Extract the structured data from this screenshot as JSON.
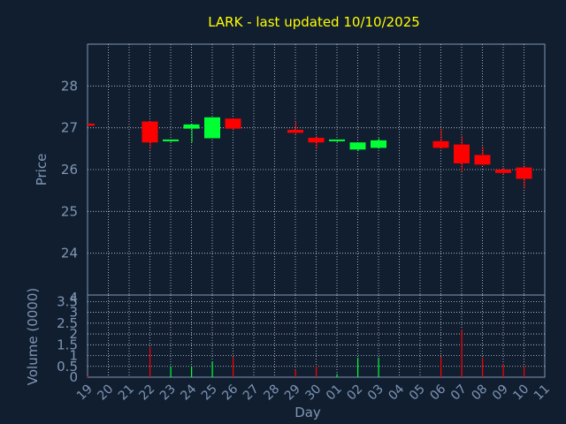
{
  "chart_data": [
    {
      "type": "candlestick",
      "title": "LARK - last updated 10/10/2025",
      "ylabel": "Price",
      "ylim": [
        23,
        29
      ],
      "yticks": [
        24,
        25,
        26,
        27,
        28
      ],
      "grid": true,
      "colors": {
        "up": "#00ff33",
        "down": "#ff0000"
      },
      "candles": [
        {
          "day": "19",
          "open": 27.1,
          "high": 27.1,
          "low": 27.05,
          "close": 27.05
        },
        {
          "day": "22",
          "open": 27.15,
          "high": 27.15,
          "low": 26.5,
          "close": 26.65
        },
        {
          "day": "23",
          "open": 26.7,
          "high": 26.72,
          "low": 26.66,
          "close": 26.72
        },
        {
          "day": "24",
          "open": 26.98,
          "high": 27.1,
          "low": 26.65,
          "close": 27.08
        },
        {
          "day": "25",
          "open": 26.75,
          "high": 27.25,
          "low": 26.75,
          "close": 27.25
        },
        {
          "day": "26",
          "open": 27.22,
          "high": 27.22,
          "low": 26.95,
          "close": 26.98
        },
        {
          "day": "29",
          "open": 26.95,
          "high": 27.15,
          "low": 26.85,
          "close": 26.88
        },
        {
          "day": "30",
          "open": 26.76,
          "high": 26.8,
          "low": 26.5,
          "close": 26.65
        },
        {
          "day": "01",
          "open": 26.68,
          "high": 26.72,
          "low": 26.66,
          "close": 26.72
        },
        {
          "day": "02",
          "open": 26.48,
          "high": 26.65,
          "low": 26.45,
          "close": 26.65
        },
        {
          "day": "03",
          "open": 26.52,
          "high": 26.75,
          "low": 26.5,
          "close": 26.7
        },
        {
          "day": "06",
          "open": 26.68,
          "high": 26.98,
          "low": 26.5,
          "close": 26.52
        },
        {
          "day": "07",
          "open": 26.6,
          "high": 26.8,
          "low": 25.95,
          "close": 26.15
        },
        {
          "day": "08",
          "open": 26.35,
          "high": 26.55,
          "low": 26.1,
          "close": 26.12
        },
        {
          "day": "09",
          "open": 26.0,
          "high": 26.05,
          "low": 25.88,
          "close": 25.92
        },
        {
          "day": "10",
          "open": 26.05,
          "high": 26.1,
          "low": 25.55,
          "close": 25.78
        }
      ]
    },
    {
      "type": "bar",
      "ylabel": "Volume (0000)",
      "xlabel": "Day",
      "ylim": [
        0,
        3.8
      ],
      "yticks": [
        "0",
        "0.5",
        "1",
        "1.5",
        "2",
        "2.5",
        "3",
        "3.5"
      ],
      "categories": [
        "19",
        "20",
        "21",
        "22",
        "23",
        "24",
        "25",
        "26",
        "27",
        "28",
        "29",
        "30",
        "01",
        "02",
        "03",
        "04",
        "05",
        "06",
        "07",
        "08",
        "09",
        "10",
        "11"
      ],
      "series": [
        {
          "values": [
            0.05,
            0,
            0,
            1.4,
            0.5,
            0.5,
            0.7,
            0.95,
            0,
            0,
            0.35,
            0.5,
            0.15,
            0.9,
            0.9,
            0,
            0,
            0.95,
            2.2,
            0.9,
            0.6,
            0.5,
            0
          ],
          "colors": [
            "#ff0000",
            "#ff0000",
            "#ff0000",
            "#ff0000",
            "#00ff33",
            "#00ff33",
            "#00ff33",
            "#ff0000",
            "#ff0000",
            "#ff0000",
            "#ff0000",
            "#ff0000",
            "#00ff33",
            "#00ff33",
            "#00ff33",
            "#ff0000",
            "#ff0000",
            "#ff0000",
            "#ff0000",
            "#ff0000",
            "#ff0000",
            "#ff0000",
            "#ff0000"
          ]
        }
      ]
    }
  ]
}
